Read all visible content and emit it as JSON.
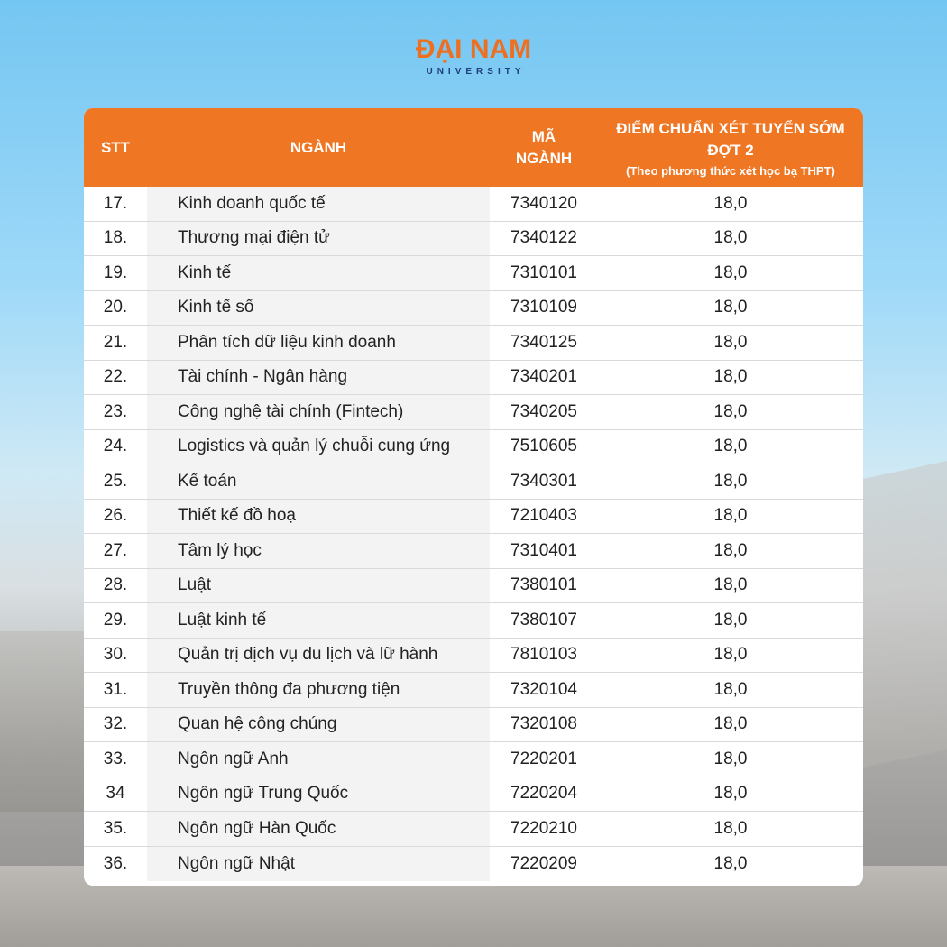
{
  "logo": {
    "name": "ĐẠI NAM",
    "sub": "UNIVERSITY"
  },
  "header": {
    "stt": "STT",
    "nganh": "NGÀNH",
    "ma_nganh_line1": "MÃ",
    "ma_nganh_line2": "NGÀNH",
    "diem_line1": "ĐIỂM CHUẨN XÉT TUYỂN SỚM",
    "diem_line2": "ĐỢT 2",
    "diem_note": "(Theo phương thức xét học bạ THPT)"
  },
  "rows": [
    {
      "stt": "17.",
      "nganh": "Kinh doanh quốc tế",
      "ma": "7340120",
      "diem": "18,0"
    },
    {
      "stt": "18.",
      "nganh": "Thương mại điện tử",
      "ma": "7340122",
      "diem": "18,0"
    },
    {
      "stt": "19.",
      "nganh": "Kinh tế",
      "ma": "7310101",
      "diem": "18,0"
    },
    {
      "stt": "20.",
      "nganh": "Kinh tế số",
      "ma": "7310109",
      "diem": "18,0"
    },
    {
      "stt": "21.",
      "nganh": "Phân tích dữ liệu kinh doanh",
      "ma": "7340125",
      "diem": "18,0"
    },
    {
      "stt": "22.",
      "nganh": "Tài chính - Ngân hàng",
      "ma": "7340201",
      "diem": "18,0"
    },
    {
      "stt": "23.",
      "nganh": "Công nghệ tài chính (Fintech)",
      "ma": "7340205",
      "diem": "18,0"
    },
    {
      "stt": "24.",
      "nganh": "Logistics và quản lý chuỗi cung ứng",
      "ma": "7510605",
      "diem": "18,0"
    },
    {
      "stt": "25.",
      "nganh": "Kế toán",
      "ma": "7340301",
      "diem": "18,0"
    },
    {
      "stt": "26.",
      "nganh": "Thiết kế đồ hoạ",
      "ma": "7210403",
      "diem": "18,0"
    },
    {
      "stt": "27.",
      "nganh": "Tâm lý học",
      "ma": "7310401",
      "diem": "18,0"
    },
    {
      "stt": "28.",
      "nganh": "Luật",
      "ma": "7380101",
      "diem": "18,0"
    },
    {
      "stt": "29.",
      "nganh": "Luật kinh tế",
      "ma": "7380107",
      "diem": "18,0"
    },
    {
      "stt": "30.",
      "nganh": "Quản trị dịch vụ du lịch và lữ hành",
      "ma": "7810103",
      "diem": "18,0"
    },
    {
      "stt": "31.",
      "nganh": "Truyền thông đa phương tiện",
      "ma": "7320104",
      "diem": "18,0"
    },
    {
      "stt": "32.",
      "nganh": "Quan hệ công chúng",
      "ma": "7320108",
      "diem": "18,0"
    },
    {
      "stt": "33.",
      "nganh": "Ngôn ngữ Anh",
      "ma": "7220201",
      "diem": "18,0"
    },
    {
      "stt": "34",
      "nganh": "Ngôn ngữ Trung Quốc",
      "ma": "7220204",
      "diem": "18,0"
    },
    {
      "stt": "35.",
      "nganh": "Ngôn ngữ Hàn Quốc",
      "ma": "7220210",
      "diem": "18,0"
    },
    {
      "stt": "36.",
      "nganh": "Ngôn ngữ Nhật",
      "ma": "7220209",
      "diem": "18,0"
    }
  ]
}
